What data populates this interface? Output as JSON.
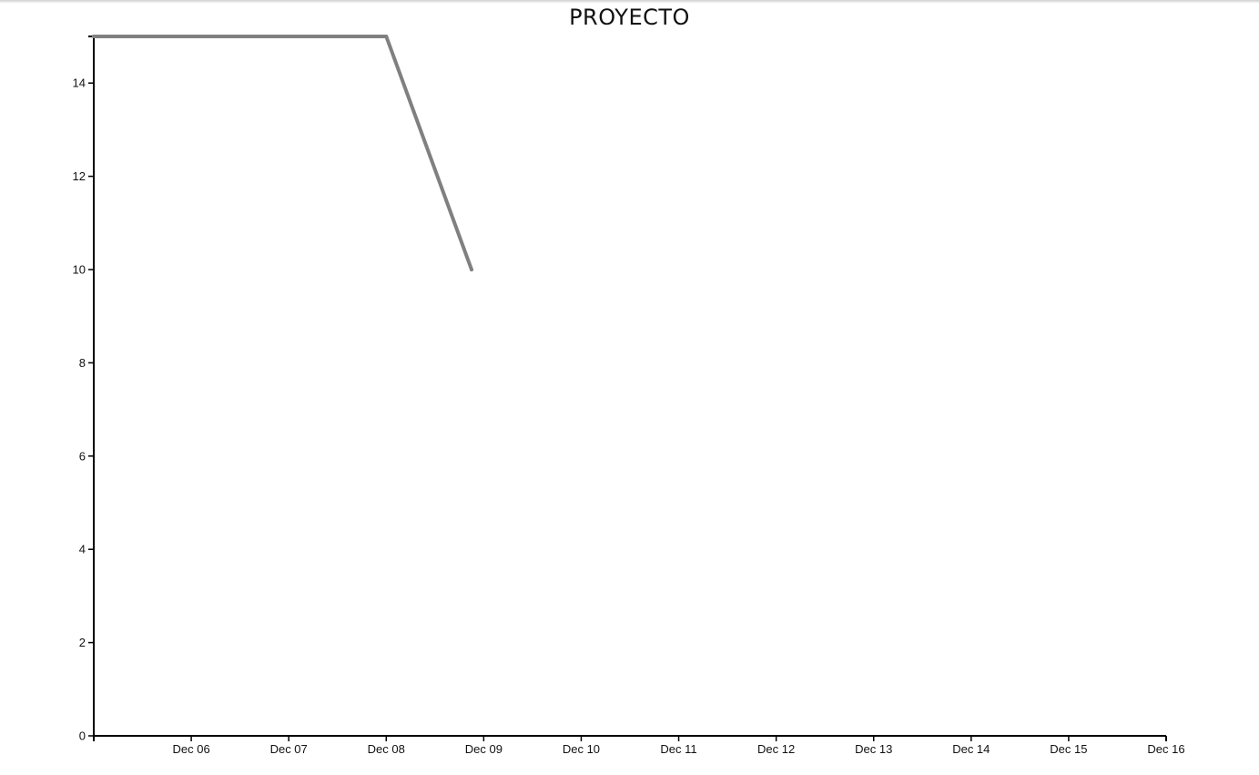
{
  "chart_data": {
    "type": "line",
    "title": "PROYECTO",
    "xlabel": "",
    "ylabel": "",
    "x_tick_labels": [
      "Dec 06",
      "Dec 07",
      "Dec 08",
      "Dec 09",
      "Dec 10",
      "Dec 11",
      "Dec 12",
      "Dec 13",
      "Dec 14",
      "Dec 15",
      "Dec 16"
    ],
    "y_ticks": [
      0,
      2,
      4,
      6,
      8,
      10,
      12,
      14
    ],
    "xlim": [
      "2023-12-05T00:00",
      "2023-12-16T00:00"
    ],
    "ylim": [
      0,
      15
    ],
    "grid": false,
    "series": [
      {
        "color": "#808080",
        "points": [
          {
            "x": "2023-12-05T00:00",
            "y": 15
          },
          {
            "x": "2023-12-08T00:00",
            "y": 15
          },
          {
            "x": "2023-12-08T21:00",
            "y": 10
          }
        ]
      }
    ]
  }
}
